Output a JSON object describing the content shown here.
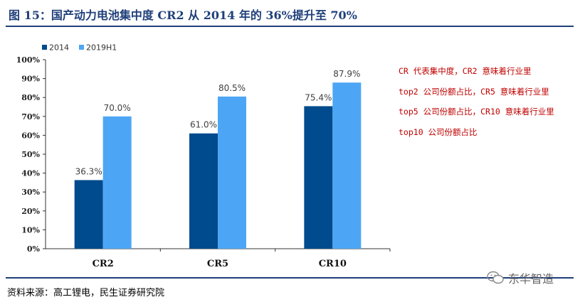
{
  "figure_title": "图 15：国产动力电池集中度 CR2 从 2014 年的 36%提升至 70%",
  "note": "CR 代表集中度，CR2 意味着行业里 top2 公司份额占比，CR5 意味着行业里 top5 公司份额占比，CR10 意味着行业里 top10 公司份额占比",
  "source": "资料来源：高工锂电，民生证券研究院",
  "watermark": "东华智造",
  "colors": {
    "2014": "#004b8d",
    "2019H1": "#4da6f5",
    "title": "#1f3f7a",
    "note": "#c00000"
  },
  "chart_data": {
    "type": "bar",
    "categories": [
      "CR2",
      "CR5",
      "CR10"
    ],
    "series": [
      {
        "name": "2014",
        "values": [
          36.3,
          61.0,
          75.4
        ],
        "labels": [
          "36.3%",
          "61.0%",
          "75.4%"
        ]
      },
      {
        "name": "2019H1",
        "values": [
          70.0,
          80.5,
          87.9
        ],
        "labels": [
          "70.0%",
          "80.5%",
          "87.9%"
        ]
      }
    ],
    "yticks": [
      "0%",
      "10%",
      "20%",
      "30%",
      "40%",
      "50%",
      "60%",
      "70%",
      "80%",
      "90%",
      "100%"
    ],
    "ylim": [
      0,
      100
    ],
    "legend_position": "top-left",
    "grid": false
  }
}
